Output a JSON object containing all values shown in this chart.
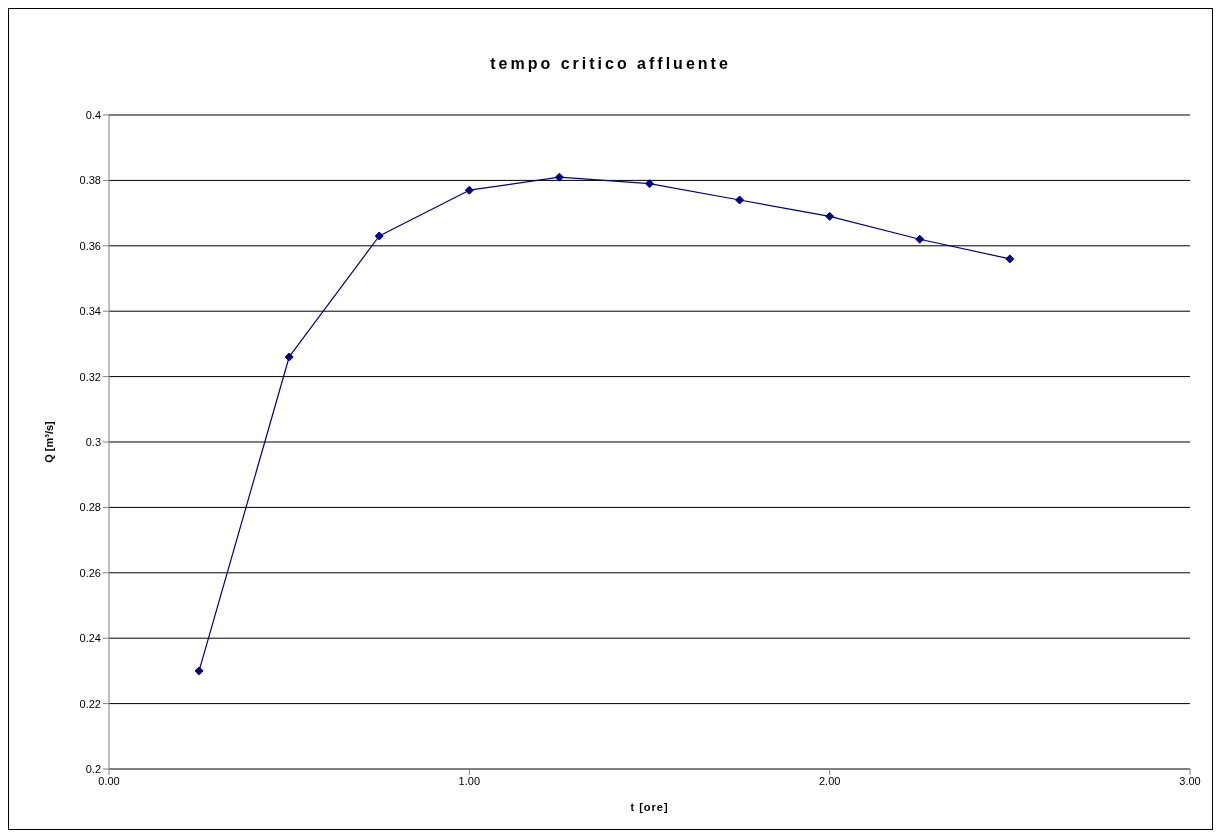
{
  "chart_data": {
    "type": "line",
    "title": "tempo critico affluente",
    "xlabel": "t [ore]",
    "ylabel": "Q [m³/s]",
    "x": [
      0.25,
      0.5,
      0.75,
      1.0,
      1.25,
      1.5,
      1.75,
      2.0,
      2.25,
      2.5
    ],
    "series": [
      {
        "color": "#000080",
        "values": [
          0.23,
          0.326,
          0.363,
          0.377,
          0.381,
          0.379,
          0.374,
          0.369,
          0.362,
          0.356
        ]
      }
    ],
    "xlim": [
      0,
      3
    ],
    "xticks": [
      {
        "value": 0,
        "label": "0.00"
      },
      {
        "value": 1,
        "label": "1.00"
      },
      {
        "value": 2,
        "label": "2.00"
      },
      {
        "value": 3,
        "label": "3.00"
      }
    ],
    "ylim": [
      0.2,
      0.4
    ],
    "yticks": [
      0.2,
      0.22,
      0.24,
      0.26,
      0.28,
      0.3,
      0.32,
      0.34,
      0.36,
      0.38,
      0.4
    ],
    "grid": "y",
    "legend": false,
    "marker": "diamond",
    "line_style": "solid"
  }
}
